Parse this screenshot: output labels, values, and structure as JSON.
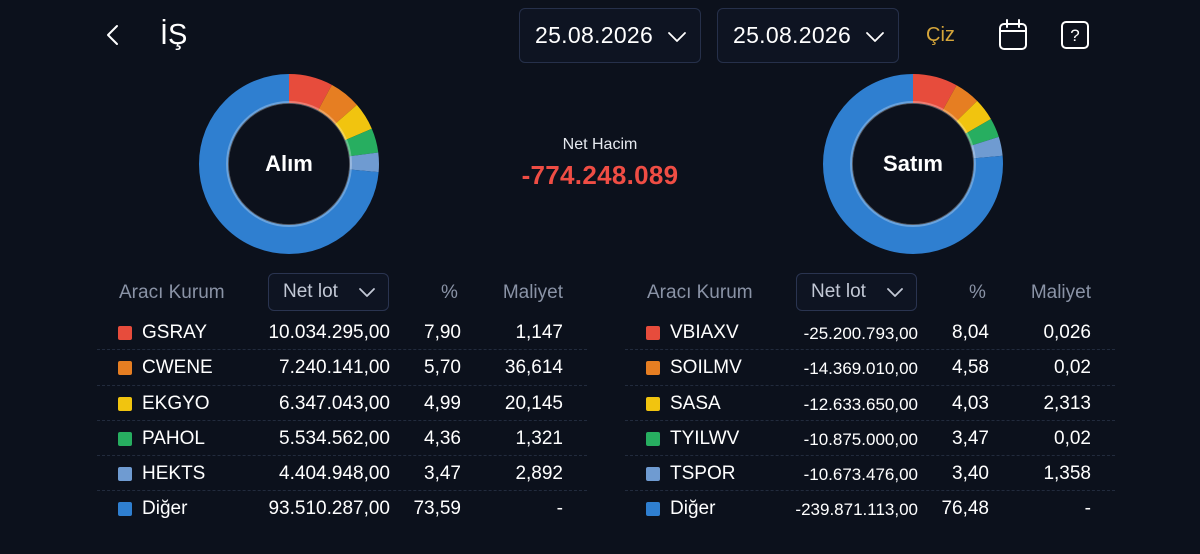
{
  "header": {
    "title": "İŞ",
    "date_start": "25.08.2026",
    "date_end": "25.08.2026",
    "draw_label": "Çiz",
    "back_icon": "chevron-left-icon",
    "calendar_icon": "calendar-icon",
    "help_icon": "question-mark-icon"
  },
  "summary": {
    "buy_label": "Alım",
    "sell_label": "Satım",
    "net_title": "Net Hacim",
    "net_value": "-774.248.089"
  },
  "colors": {
    "background": "#0c111c",
    "negative": "#ef4d44",
    "accent": "#d6a63a",
    "series": [
      "#e74c3c",
      "#e67e22",
      "#f1c40f",
      "#27ae60",
      "#6f9bd1",
      "#2f7fd0"
    ]
  },
  "buy_table": {
    "header_broker": "Aracı Kurum",
    "header_select": "Net lot",
    "header_pct": "%",
    "header_cost": "Maliyet",
    "rows": [
      {
        "name": "GSRAY",
        "lot": "10.034.295,00",
        "pct": "7,90",
        "cost": "1,147",
        "pct_value": 7.9
      },
      {
        "name": "CWENE",
        "lot": "7.240.141,00",
        "pct": "5,70",
        "cost": "36,614",
        "pct_value": 5.7
      },
      {
        "name": "EKGYO",
        "lot": "6.347.043,00",
        "pct": "4,99",
        "cost": "20,145",
        "pct_value": 4.99
      },
      {
        "name": "PAHOL",
        "lot": "5.534.562,00",
        "pct": "4,36",
        "cost": "1,321",
        "pct_value": 4.36
      },
      {
        "name": "HEKTS",
        "lot": "4.404.948,00",
        "pct": "3,47",
        "cost": "2,892",
        "pct_value": 3.47
      },
      {
        "name": "Diğer",
        "lot": "93.510.287,00",
        "pct": "73,59",
        "cost": "-",
        "pct_value": 73.59
      }
    ]
  },
  "sell_table": {
    "header_broker": "Aracı Kurum",
    "header_select": "Net lot",
    "header_pct": "%",
    "header_cost": "Maliyet",
    "rows": [
      {
        "name": "VBIAXV",
        "lot": "-25.200.793,00",
        "pct": "8,04",
        "cost": "0,026",
        "pct_value": 8.04
      },
      {
        "name": "SOILMV",
        "lot": "-14.369.010,00",
        "pct": "4,58",
        "cost": "0,02",
        "pct_value": 4.58
      },
      {
        "name": "SASA",
        "lot": "-12.633.650,00",
        "pct": "4,03",
        "cost": "2,313",
        "pct_value": 4.03
      },
      {
        "name": "TYILWV",
        "lot": "-10.875.000,00",
        "pct": "3,47",
        "cost": "0,02",
        "pct_value": 3.47
      },
      {
        "name": "TSPOR",
        "lot": "-10.673.476,00",
        "pct": "3,40",
        "cost": "1,358",
        "pct_value": 3.4
      },
      {
        "name": "Diğer",
        "lot": "-239.871.113,00",
        "pct": "76,48",
        "cost": "-",
        "pct_value": 76.48
      }
    ]
  }
}
